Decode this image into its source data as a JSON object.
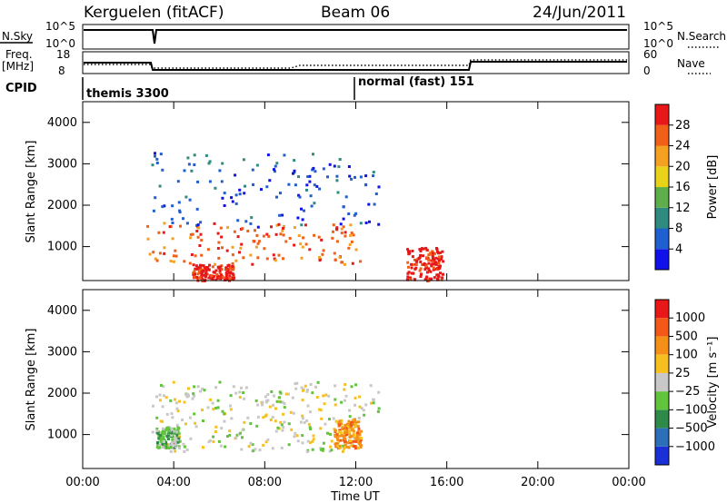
{
  "header": {
    "site": "Kerguelen (fitACF)",
    "beam": "Beam 06",
    "date": "24/Jun/2011"
  },
  "strips": {
    "nsky_label": "N.Sky",
    "nsky_ticks": [
      "10^5",
      "10^0"
    ],
    "nsearch_label": "N.Search",
    "freq_label_1": "Freq.",
    "freq_label_2": "[MHz]",
    "freq_ticks": [
      "18",
      "8"
    ],
    "nave_ticks": [
      "60",
      "0"
    ],
    "nave_label": "Nave",
    "cpid_label": "CPID",
    "cpid_1": "themis 3300",
    "cpid_2": "normal (fast) 151"
  },
  "chart_data": [
    {
      "type": "heatmap",
      "name": "power",
      "ylabel": "Slant Range [km]",
      "xlabel": "Time UT",
      "y_ticks": [
        "1000",
        "2000",
        "3000",
        "4000"
      ],
      "x_ticks": [
        "00:00",
        "04:00",
        "08:00",
        "12:00",
        "16:00",
        "20:00",
        "00:00"
      ],
      "ylim": [
        180,
        4500
      ],
      "xlim_hours": [
        0,
        24
      ],
      "colorbar_label": "Power [dB]",
      "colorbar_ticks": [
        "4",
        "8",
        "12",
        "16",
        "20",
        "24",
        "28"
      ],
      "colorbar_colors": [
        "#1010e8",
        "#1f5fd0",
        "#2f8a80",
        "#5fae4c",
        "#e8d21a",
        "#f4a020",
        "#f06018",
        "#e81818"
      ],
      "regions": [
        {
          "t0": 2.8,
          "t1": 12.2,
          "r0": 600,
          "r1": 1600,
          "level": 6
        },
        {
          "t0": 3.0,
          "t1": 13.0,
          "r0": 1500,
          "r1": 3300,
          "level": 1
        },
        {
          "t0": 14.2,
          "t1": 15.8,
          "r0": 200,
          "r1": 1000,
          "level": 7
        },
        {
          "t0": 4.8,
          "t1": 6.6,
          "r0": 200,
          "r1": 600,
          "level": 7
        }
      ]
    },
    {
      "type": "heatmap",
      "name": "velocity",
      "ylabel": "Slant Range [km]",
      "xlabel": "Time UT",
      "y_ticks": [
        "1000",
        "2000",
        "3000",
        "4000"
      ],
      "x_ticks": [
        "00:00",
        "04:00",
        "08:00",
        "12:00",
        "16:00",
        "20:00",
        "00:00"
      ],
      "ylim": [
        180,
        4500
      ],
      "xlim_hours": [
        0,
        24
      ],
      "colorbar_label": "Velocity [m s⁻¹]",
      "colorbar_ticks": [
        "1000",
        "500",
        "100",
        "25",
        "−25",
        "−100",
        "−500",
        "−1000"
      ],
      "colorbar_colors": [
        "#1a2fd6",
        "#2c6fb8",
        "#2f8a4a",
        "#62c43c",
        "#c8c8c8",
        "#f6c020",
        "#f49018",
        "#f25818",
        "#e81818"
      ],
      "regions": [
        {
          "t0": 3.0,
          "t1": 12.2,
          "r0": 600,
          "r1": 1500,
          "level": 4
        },
        {
          "t0": 3.0,
          "t1": 13.0,
          "r0": 1500,
          "r1": 2300,
          "level": 4
        },
        {
          "t0": 3.2,
          "t1": 4.2,
          "r0": 700,
          "r1": 1200,
          "level": 3
        },
        {
          "t0": 11.0,
          "t1": 12.2,
          "r0": 700,
          "r1": 1400,
          "level": 6
        }
      ]
    }
  ]
}
